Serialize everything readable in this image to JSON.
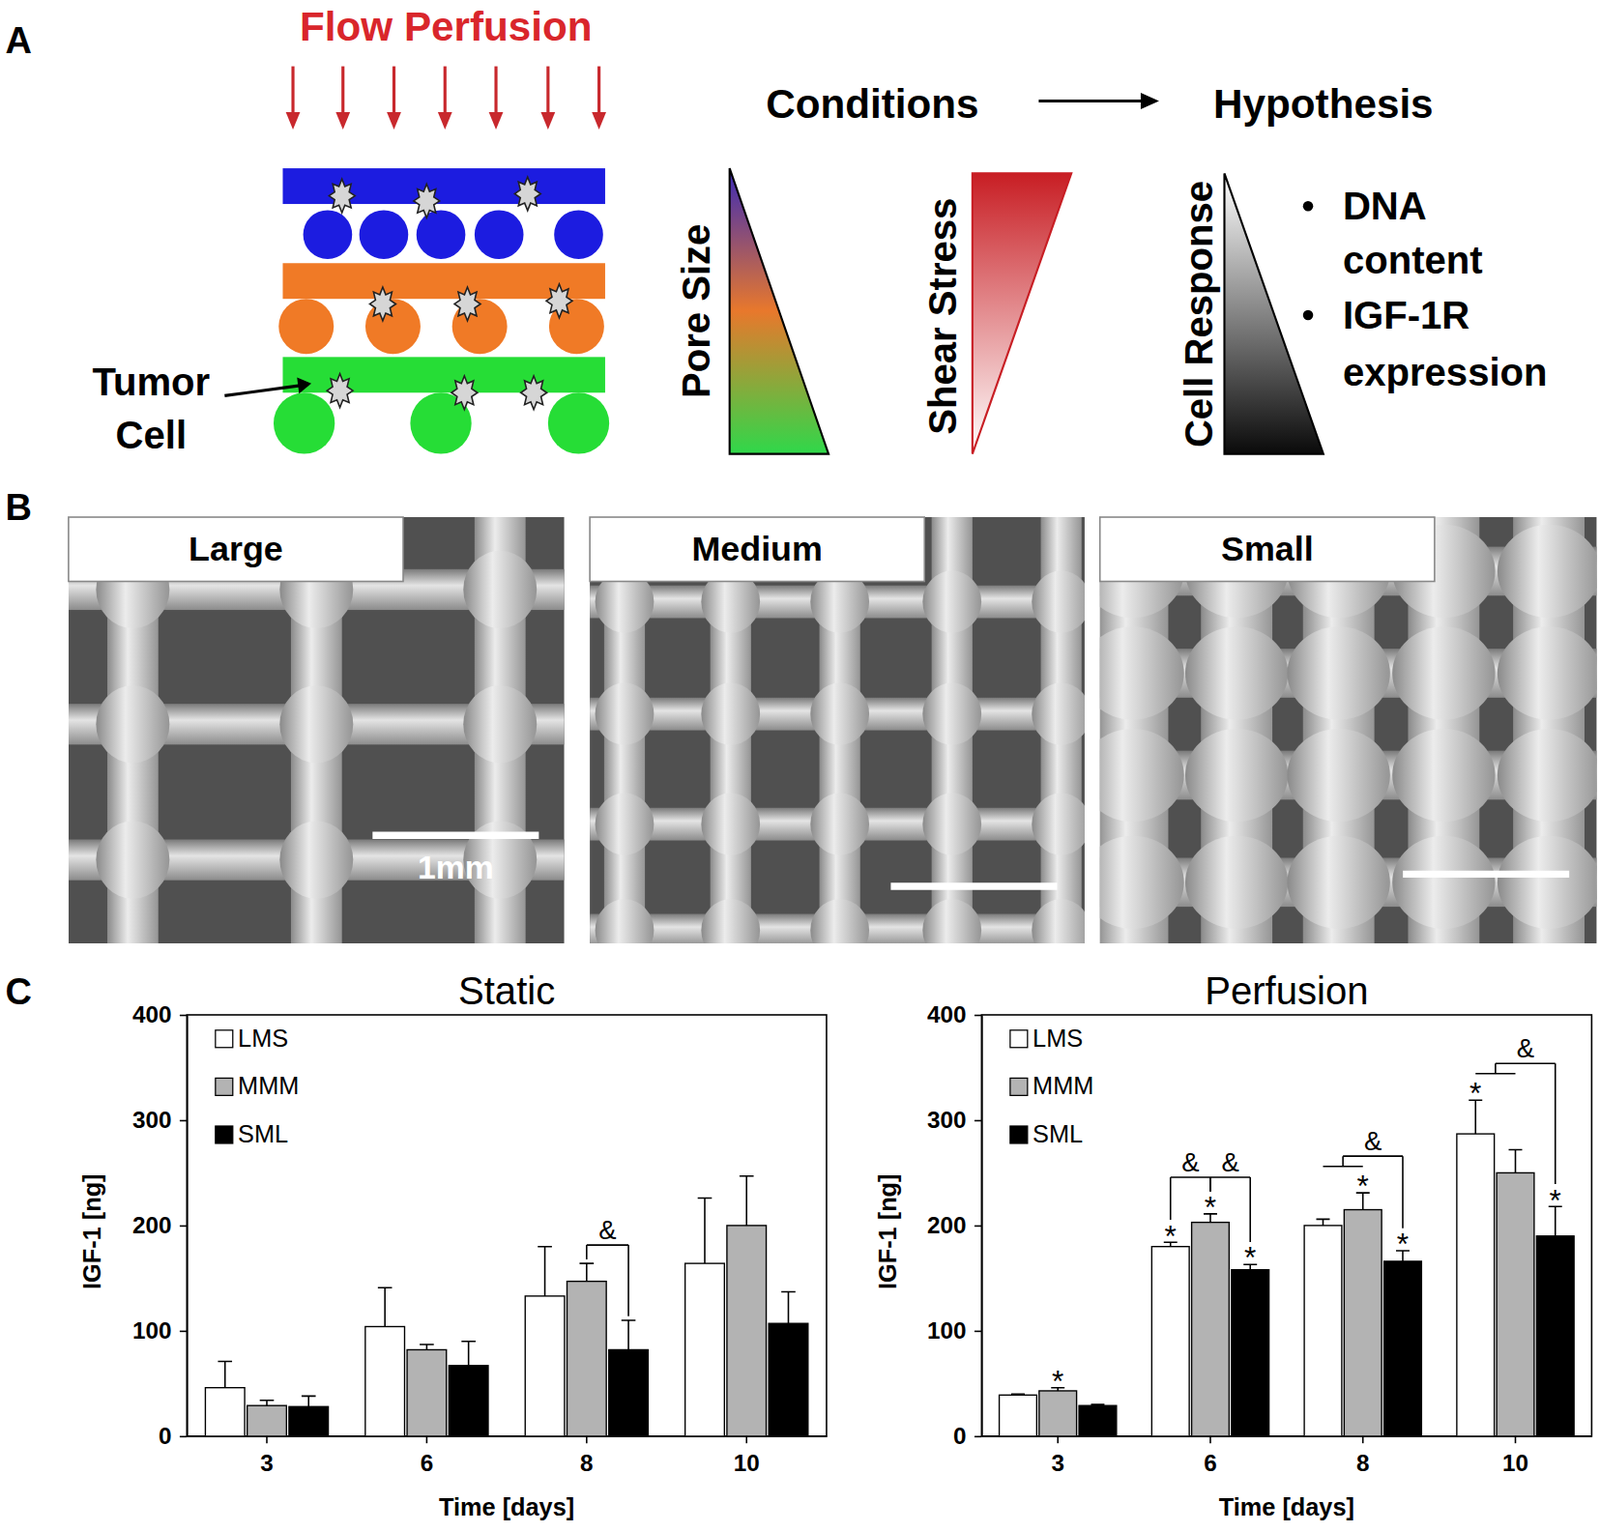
{
  "panel_labels": [
    "A",
    "B",
    "C"
  ],
  "schematic": {
    "flow": "Flow Perfusion",
    "cell_label": [
      "Tumor",
      "Cell"
    ],
    "conditions": "Conditions",
    "hypothesis": "Hypothesis",
    "triangles": [
      "Pore Size",
      "Shear Stress",
      "Cell Response"
    ],
    "bullets": [
      [
        "DNA",
        "content"
      ],
      [
        "IGF-1R",
        "expression"
      ]
    ]
  },
  "sem": {
    "panels": [
      "Large",
      "Medium",
      "Small"
    ],
    "scale_bar": "1mm"
  },
  "chart_data": [
    {
      "type": "bar",
      "title": "Static",
      "x_label": "Time [days]",
      "y_label": "IGF-1 [ng]",
      "categories": [
        "3",
        "6",
        "8",
        "10"
      ],
      "series": [
        {
          "name": "LMS",
          "color": "#ffffff",
          "values": [
            46,
            104,
            133,
            164
          ],
          "errors": [
            25,
            37,
            47,
            62
          ]
        },
        {
          "name": "MMM",
          "color": "#b3b3b3",
          "values": [
            29,
            82,
            147,
            200
          ],
          "errors": [
            5,
            5,
            17,
            47
          ]
        },
        {
          "name": "SML",
          "color": "#000000",
          "values": [
            28,
            67,
            82,
            107
          ],
          "errors": [
            10,
            23,
            28,
            30
          ]
        }
      ],
      "ylim": [
        0,
        400
      ],
      "yticks": [
        0,
        100,
        200,
        300,
        400
      ],
      "legend": "upper left",
      "brackets": [
        {
          "text": "&",
          "category": "8",
          "left": [
            "MMM"
          ],
          "right": [
            "SML"
          ]
        }
      ]
    },
    {
      "type": "bar",
      "title": "Perfusion",
      "x_label": "Time [days]",
      "y_label": "IGF-1 [ng]",
      "categories": [
        "3",
        "6",
        "8",
        "10"
      ],
      "series": [
        {
          "name": "LMS",
          "color": "#ffffff",
          "values": [
            39,
            180,
            200,
            287
          ],
          "errors": [
            1,
            4,
            6,
            32
          ]
        },
        {
          "name": "MMM",
          "color": "#b3b3b3",
          "values": [
            43,
            203,
            215,
            250
          ],
          "errors": [
            3,
            8,
            16,
            22
          ]
        },
        {
          "name": "SML",
          "color": "#000000",
          "values": [
            29,
            158,
            166,
            190
          ],
          "errors": [
            1,
            5,
            10,
            28
          ]
        }
      ],
      "ylim": [
        0,
        400
      ],
      "yticks": [
        0,
        100,
        200,
        300,
        400
      ],
      "legend": "upper left",
      "annotations": [
        {
          "text": "*",
          "category": "3",
          "series": "MMM"
        },
        {
          "text": "*",
          "category": "6",
          "series": "LMS"
        },
        {
          "text": "*",
          "category": "6",
          "series": "MMM"
        },
        {
          "text": "*",
          "category": "6",
          "series": "SML"
        },
        {
          "text": "*",
          "category": "8",
          "series": "MMM"
        },
        {
          "text": "*",
          "category": "8",
          "series": "SML"
        },
        {
          "text": "*",
          "category": "10",
          "series": "LMS"
        },
        {
          "text": "*",
          "category": "10",
          "series": "SML"
        }
      ],
      "brackets": [
        {
          "text": "&",
          "category": "6",
          "left": [
            "LMS"
          ],
          "right": [
            "MMM"
          ]
        },
        {
          "text": "&",
          "category": "6",
          "left": [
            "MMM"
          ],
          "right": [
            "SML"
          ]
        },
        {
          "text": "&",
          "category": "8",
          "left": [
            "LMS",
            "MMM"
          ],
          "right": [
            "SML"
          ]
        },
        {
          "text": "&",
          "category": "10",
          "left": [
            "LMS",
            "MMM"
          ],
          "right": [
            "SML"
          ]
        }
      ]
    }
  ]
}
